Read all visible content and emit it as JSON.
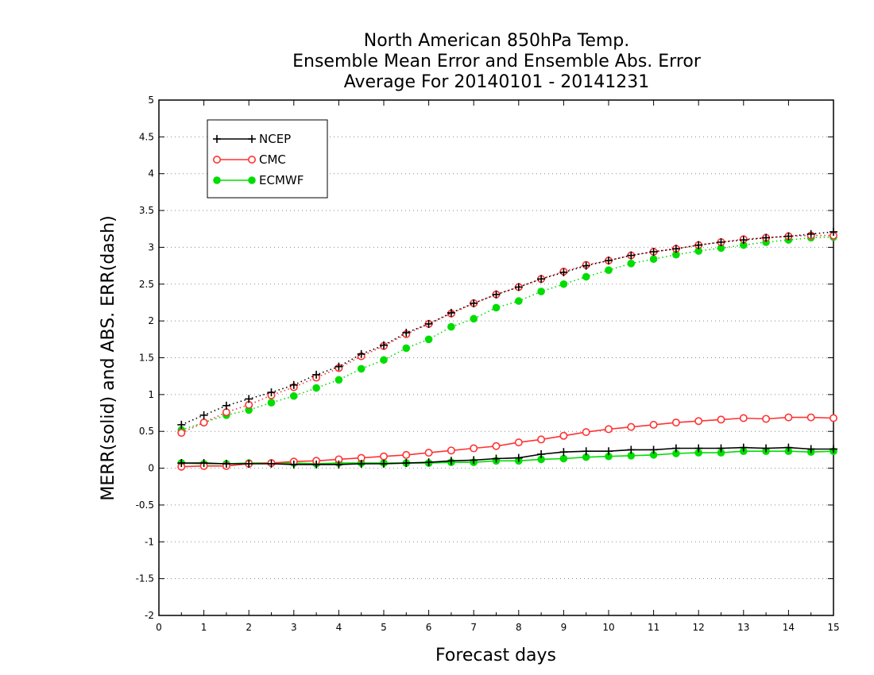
{
  "chart_data": {
    "type": "line",
    "title_lines": [
      "North American 850hPa Temp.",
      "Ensemble Mean Error and Ensemble Abs. Error",
      "Average For 20140101 - 20141231"
    ],
    "xlabel": "Forecast days",
    "ylabel": "MERR(solid) and ABS. ERR(dash)",
    "xlim": [
      0,
      15
    ],
    "ylim": [
      -2,
      5
    ],
    "x_ticks": [
      "0",
      "1",
      "2",
      "3",
      "4",
      "5",
      "6",
      "7",
      "8",
      "9",
      "10",
      "11",
      "12",
      "13",
      "14",
      "15"
    ],
    "y_ticks": [
      "-2",
      "-1.5",
      "-1",
      "-0.5",
      "0",
      "0.5",
      "1",
      "1.5",
      "2",
      "2.5",
      "3",
      "3.5",
      "4",
      "4.5",
      "5"
    ],
    "grid": "horizontal dotted",
    "legend_position": "top-left",
    "x": [
      0.5,
      1,
      1.5,
      2,
      2.5,
      3,
      3.5,
      4,
      4.5,
      5,
      5.5,
      6,
      6.5,
      7,
      7.5,
      8,
      8.5,
      9,
      9.5,
      10,
      10.5,
      11,
      11.5,
      12,
      12.5,
      13,
      13.5,
      14,
      14.5,
      15
    ],
    "series": [
      {
        "name": "NCEP",
        "color": "#000000",
        "marker": "plus",
        "merr": [
          0.07,
          0.07,
          0.06,
          0.06,
          0.06,
          0.05,
          0.05,
          0.05,
          0.06,
          0.06,
          0.07,
          0.08,
          0.1,
          0.11,
          0.13,
          0.14,
          0.19,
          0.22,
          0.23,
          0.23,
          0.25,
          0.25,
          0.27,
          0.27,
          0.27,
          0.28,
          0.27,
          0.28,
          0.26,
          0.26
        ],
        "abs_err": [
          0.59,
          0.72,
          0.85,
          0.94,
          1.03,
          1.13,
          1.27,
          1.38,
          1.55,
          1.67,
          1.84,
          1.96,
          2.11,
          2.24,
          2.36,
          2.46,
          2.57,
          2.66,
          2.75,
          2.82,
          2.89,
          2.94,
          2.98,
          3.03,
          3.07,
          3.1,
          3.13,
          3.15,
          3.18,
          3.21
        ]
      },
      {
        "name": "CMC",
        "color": "#ff3333",
        "marker": "open-circle",
        "merr": [
          0.02,
          0.03,
          0.03,
          0.06,
          0.07,
          0.09,
          0.1,
          0.12,
          0.14,
          0.16,
          0.18,
          0.21,
          0.24,
          0.27,
          0.3,
          0.35,
          0.39,
          0.44,
          0.49,
          0.53,
          0.56,
          0.59,
          0.62,
          0.64,
          0.66,
          0.68,
          0.67,
          0.69,
          0.69,
          0.68
        ],
        "abs_err": [
          0.48,
          0.62,
          0.76,
          0.86,
          0.99,
          1.1,
          1.23,
          1.36,
          1.52,
          1.66,
          1.82,
          1.96,
          2.1,
          2.24,
          2.36,
          2.46,
          2.57,
          2.67,
          2.76,
          2.82,
          2.89,
          2.94,
          2.98,
          3.03,
          3.07,
          3.11,
          3.13,
          3.15,
          3.16,
          3.16
        ]
      },
      {
        "name": "ECMWF",
        "color": "#00dd00",
        "marker": "filled-circle",
        "merr": [
          0.07,
          0.06,
          0.06,
          0.07,
          0.07,
          0.07,
          0.06,
          0.07,
          0.07,
          0.07,
          0.07,
          0.07,
          0.08,
          0.08,
          0.1,
          0.1,
          0.12,
          0.13,
          0.15,
          0.16,
          0.17,
          0.18,
          0.2,
          0.21,
          0.21,
          0.23,
          0.23,
          0.23,
          0.22,
          0.23
        ],
        "abs_err": [
          0.52,
          0.62,
          0.72,
          0.79,
          0.89,
          0.98,
          1.09,
          1.2,
          1.35,
          1.47,
          1.63,
          1.75,
          1.92,
          2.03,
          2.18,
          2.27,
          2.4,
          2.5,
          2.6,
          2.69,
          2.78,
          2.84,
          2.9,
          2.95,
          2.99,
          3.03,
          3.07,
          3.1,
          3.13,
          3.14
        ]
      }
    ]
  }
}
